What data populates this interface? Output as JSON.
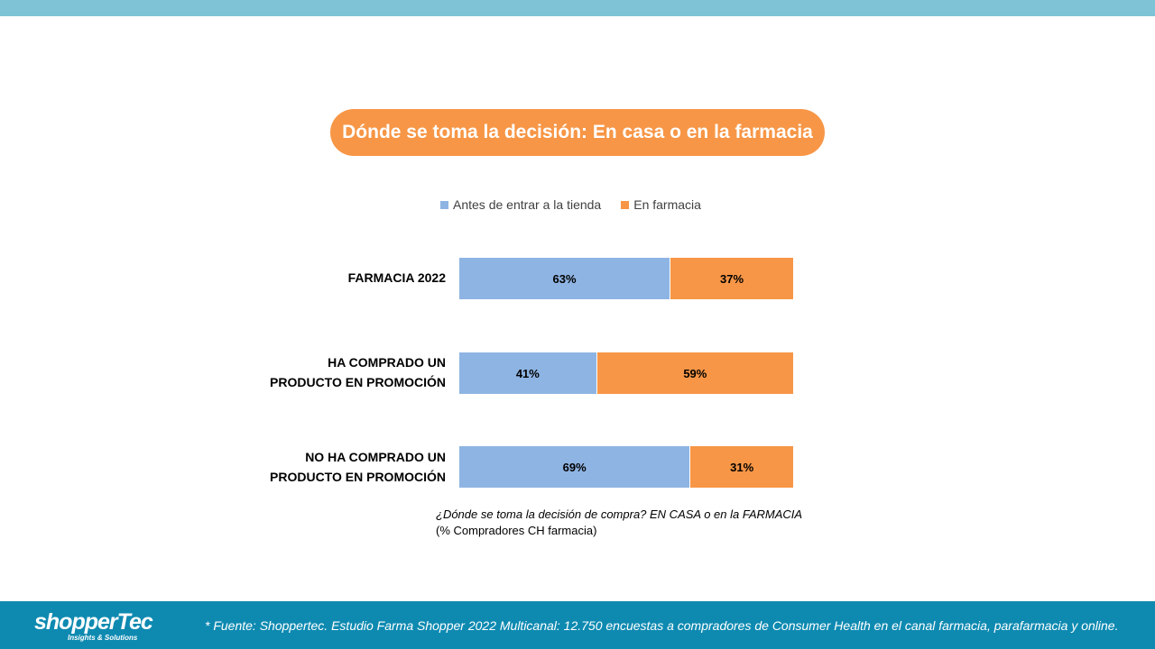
{
  "colors": {
    "top_band": "#7fc3d6",
    "title_bg": "#f79646",
    "series_before": "#8eb4e3",
    "series_pharmacy": "#f79646",
    "footer_bg": "#0e8ab1"
  },
  "title": "Dónde se toma la decisión: En casa o en la farmacia",
  "chart_data": {
    "type": "bar",
    "orientation": "horizontal",
    "stacked": true,
    "percent": true,
    "legend_position": "top",
    "categories": [
      "FARMACIA 2022",
      "HA COMPRADO UN PRODUCTO EN PROMOCIÓN",
      "NO HA COMPRADO UN PRODUCTO EN PROMOCIÓN"
    ],
    "series": [
      {
        "name": "Antes de entrar a la tienda",
        "values": [
          63,
          41,
          69
        ],
        "labels": [
          "63%",
          "41%",
          "69%"
        ]
      },
      {
        "name": "En farmacia",
        "values": [
          37,
          59,
          31
        ],
        "labels": [
          "37%",
          "59%",
          "31%"
        ]
      }
    ],
    "xlim": [
      0,
      100
    ],
    "grid": false
  },
  "question": {
    "line1": "¿Dónde se toma la decisión de compra? EN CASA o en la FARMACIA",
    "line2": "(% Compradores CH farmacia)"
  },
  "footer": {
    "logo_text": "shopperTec",
    "logo_tagline": "Insights & Solutions",
    "source": "* Fuente: Shoppertec. Estudio Farma Shopper 2022 Multicanal: 12.750 encuestas a compradores de Consumer Health en el canal farmacia, parafarmacia y online."
  }
}
